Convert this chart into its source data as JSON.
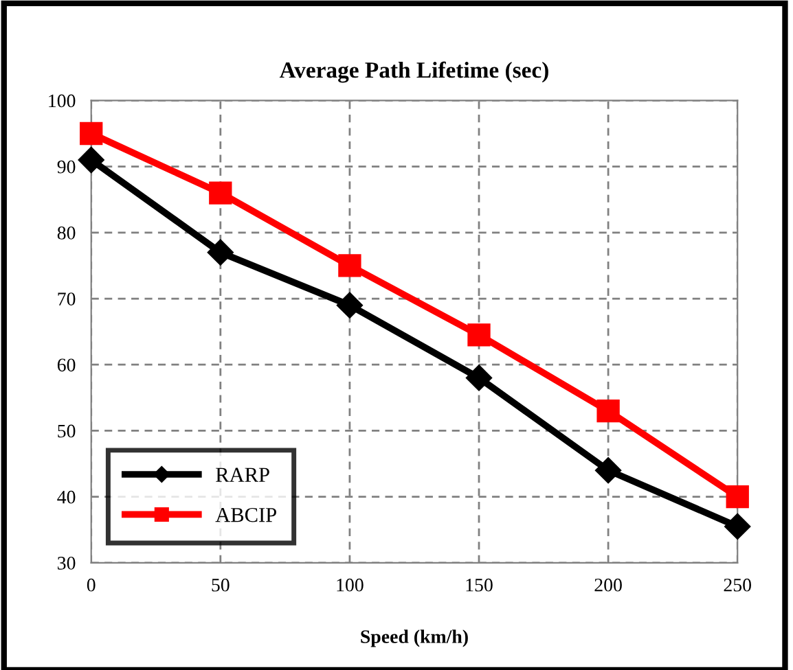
{
  "chart_data": {
    "type": "line",
    "title": "Average Path Lifetime (sec)",
    "xlabel": "Speed (km/h)",
    "x": [
      0,
      50,
      100,
      150,
      200,
      250
    ],
    "series": [
      {
        "name": "RARP",
        "color": "#000000",
        "marker": "diamond",
        "values": [
          91,
          77,
          69,
          58,
          44,
          35.5
        ]
      },
      {
        "name": "ABCIP",
        "color": "#ff0000",
        "marker": "square",
        "values": [
          95,
          86,
          75,
          64.5,
          53,
          40
        ]
      }
    ],
    "xlim": [
      0,
      250
    ],
    "xticks": [
      0,
      50,
      100,
      150,
      200,
      250
    ],
    "ylim": [
      30,
      100
    ],
    "yticks": [
      30,
      40,
      50,
      60,
      70,
      80,
      90,
      100
    ],
    "grid": true,
    "legend": "bottom left",
    "line_style": "solid"
  }
}
